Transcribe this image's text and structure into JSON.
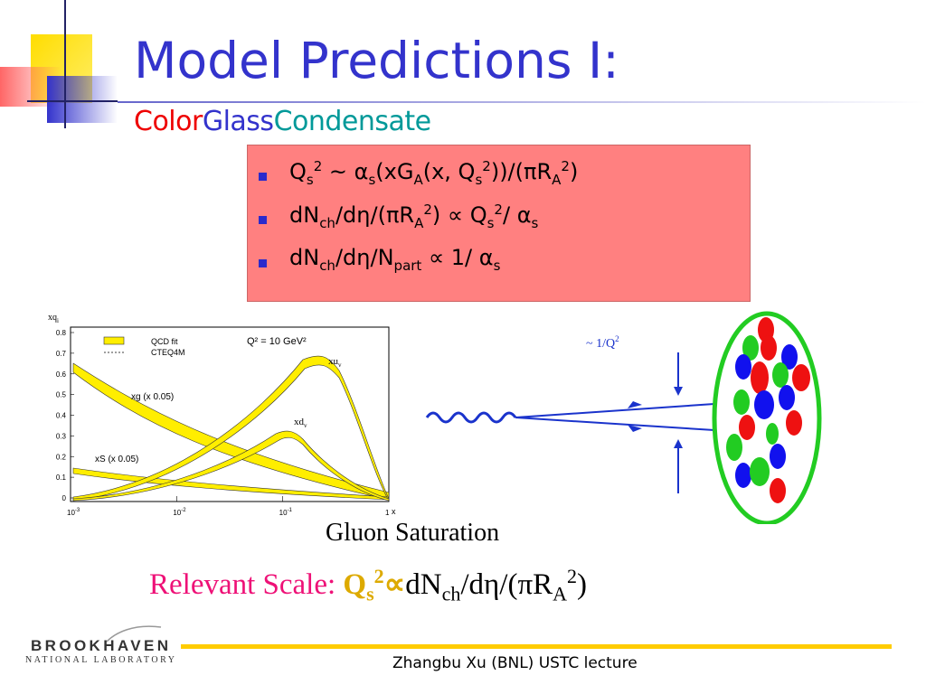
{
  "title": "Model Predictions I:",
  "subtitle": {
    "color": "Color",
    "glass": "Glass",
    "condensate": "Condensate"
  },
  "bullets": {
    "b1": {
      "a": "Q",
      "a_sub": "s",
      "a_sup": "2",
      "b": " ~ ",
      "alpha": "α",
      "alpha_sub": "s",
      "c": "(xG",
      "c_sub": "A",
      "d": "(x, Q",
      "d_sub": "s",
      "d_sup": "2",
      "e": "))/(",
      "pi": "π",
      "f": "R",
      "f_sub": "A",
      "f_sup": "2",
      "g": ")"
    },
    "b2": {
      "a": "dN",
      "a_sub": "ch",
      "b": "/d",
      "eta": "η",
      "c": "/(",
      "pi": "π",
      "d": "R",
      "d_sub": "A",
      "d_sup": "2",
      "e": ") ",
      "prop": "∝",
      "f": " Q",
      "f_sub": "s",
      "f_sup": "2",
      "g": "/ ",
      "alpha": "α",
      "alpha_sub": "s"
    },
    "b3": {
      "a": "dN",
      "a_sub": "ch",
      "b": "/d",
      "eta": "η",
      "c": "/N",
      "c_sub": "part",
      "d": " ",
      "prop": "∝",
      "e": " 1/ ",
      "alpha": "α",
      "alpha_sub": "s"
    }
  },
  "graph": {
    "ylabel": "xq",
    "ylabel_sub": "i",
    "yticks": [
      "0.8",
      "0.7",
      "0.6",
      "0.5",
      "0.4",
      "0.3",
      "0.2",
      "0.1",
      "0"
    ],
    "xticks": [
      "10",
      "10",
      "10",
      "1"
    ],
    "xticks_exp": [
      "-3",
      "-2",
      "-1",
      ""
    ],
    "x_end": "x",
    "legend": {
      "fit": "QCD fit",
      "cteq": "CTEQ4M"
    },
    "q2_label": "Q² = 10 GeV²",
    "labels": {
      "xuv": "xu",
      "xuv_sub": "v",
      "xg": "xg (x 0.05)",
      "xdv": "xd",
      "xdv_sub": "v",
      "xs": "xS (x 0.05)"
    },
    "colors": {
      "band": "#ffee00"
    }
  },
  "diagram": {
    "q_label": "~  1/Q",
    "q_sup": "2",
    "colors": {
      "ellipse": "#22cc22",
      "red": "#ee1111",
      "green": "#22cc22",
      "blue": "#1111ee",
      "arrow": "#1a33cc"
    }
  },
  "gluon_caption": "Gluon Saturation",
  "scale": {
    "label": "Relevant Scale: ",
    "q": "Q",
    "q_sub": "s",
    "q_sup": "2",
    "prop": "∝",
    "rest_a": "dN",
    "rest_a_sub": "ch",
    "rest_b": "/d",
    "eta": "η",
    "rest_c": "/(",
    "pi": "π",
    "rest_d": "R",
    "rest_d_sub": "A",
    "rest_d_sup": "2",
    "rest_e": ")"
  },
  "logo": {
    "line1": "BROOKHAVEN",
    "line2": "NATIONAL LABORATORY"
  },
  "footer": "Zhangbu Xu (BNL) USTC lecture",
  "colors": {
    "title": "#3333cc",
    "color_word": "#ee0000",
    "glass_word": "#3333cc",
    "condensate_word": "#009999",
    "box": "#ff8080",
    "scale_label": "#ee1177",
    "q_scale": "#ddaa00",
    "footer_line": "#ffcc00"
  }
}
